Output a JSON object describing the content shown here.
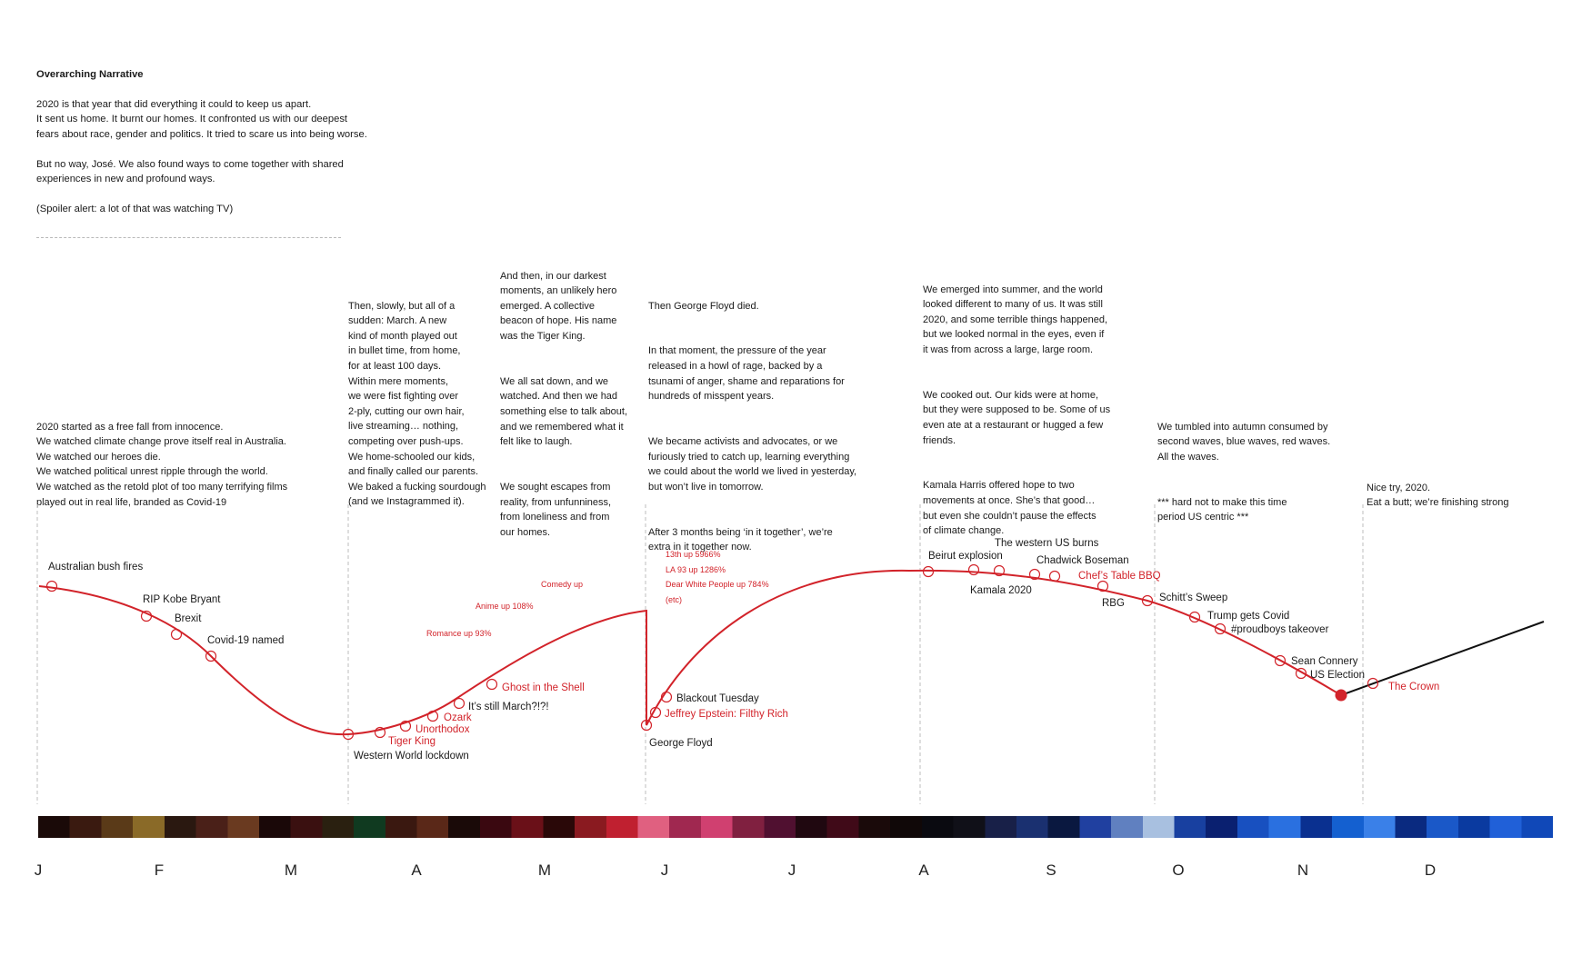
{
  "colors": {
    "curve": "#d2232a",
    "future": "#111111",
    "text": "#1a1a1a",
    "dashed": "#bdbdbd"
  },
  "intro": {
    "heading": "Overarching Narrative",
    "paragraphs": [
      "2020 is that year that did everything it could to keep us apart.\nIt sent us home. It burnt our homes. It confronted us with our deepest\nfears about race, gender and politics. It tried to scare us into being worse.",
      "But no way, José. We also found ways to come together with shared\nexperiences in new and profound ways.",
      "(Spoiler alert: a lot of that was watching TV)"
    ]
  },
  "narratives": [
    {
      "id": "jan",
      "paragraphs": [
        "2020 started as a free fall from innocence.\nWe watched climate change prove itself real in Australia.\nWe watched our heroes die.\nWe watched political unrest ripple through the world.\nWe watched as the retold plot of too many terrifying films\nplayed out in real life, branded as Covid-19"
      ]
    },
    {
      "id": "mar",
      "paragraphs": [
        "Then, slowly, but all of a\nsudden: March. A new\nkind of month played out\nin bullet time, from home,\nfor at least 100 days.\nWithin mere moments,\nwe were fist fighting over\n2-ply, cutting our own hair,\nlive streaming… nothing,\ncompeting over push-ups.\nWe home-schooled our kids,\nand finally called our parents.\nWe baked a fucking sourdough\n(and we Instagrammed it)."
      ]
    },
    {
      "id": "apr",
      "paragraphs": [
        "And then, in our darkest\nmoments, an unlikely hero\nemerged. A collective\nbeacon of hope. His name\nwas the Tiger King.",
        "We all sat down, and we\nwatched. And then we had\nsomething else to talk about,\nand we remembered what it\nfelt like to laugh.",
        "We sought escapes from\nreality, from unfunniness,\nfrom loneliness and from\nour homes."
      ]
    },
    {
      "id": "jun",
      "paragraphs": [
        "Then George Floyd died.",
        "In that moment, the pressure of the year\nreleased in a howl of rage, backed by a\ntsunami of anger, shame and reparations for\nhundreds of misspent years.",
        "We became activists and advocates, or we\nfuriously tried to catch up, learning everything\nwe could about the world we lived in yesterday,\nbut won’t live in tomorrow.",
        "After 3 months being ‘in it together’, we’re\nextra in it together now."
      ]
    },
    {
      "id": "aug",
      "paragraphs": [
        "We emerged into summer, and the world\nlooked different to many of us. It was still\n2020, and some terrible things happened,\nbut we looked normal in the eyes, even if\nit was from across a large, large room.",
        "We cooked out. Our kids were at home,\nbut they were supposed to be. Some of us\neven ate at a restaurant or hugged a few\nfriends.",
        "Kamala Harris offered hope to two\nmovements at once. She’s that good…\nbut even she couldn’t pause the effects\nof climate change."
      ]
    },
    {
      "id": "oct",
      "paragraphs": [
        "We tumbled into autumn consumed by\nsecond waves, blue waves, red waves.\nAll the waves.",
        "*** hard not to make this time\nperiod US centric ***"
      ]
    },
    {
      "id": "dec",
      "paragraphs": [
        "Nice try, 2020.\nEat a butt; we’re finishing strong"
      ]
    }
  ],
  "events": [
    {
      "label": "Australian bush fires",
      "kind": "news"
    },
    {
      "label": "RIP Kobe Bryant",
      "kind": "news"
    },
    {
      "label": "Brexit",
      "kind": "news"
    },
    {
      "label": "Covid-19 named",
      "kind": "news"
    },
    {
      "label": "Western World lockdown",
      "kind": "news"
    },
    {
      "label": "Tiger King",
      "kind": "show"
    },
    {
      "label": "Unorthodox",
      "kind": "show"
    },
    {
      "label": "Ozark",
      "kind": "show"
    },
    {
      "label": "It’s still March?!?!",
      "kind": "news"
    },
    {
      "label": "Ghost in the Shell",
      "kind": "show"
    },
    {
      "label": "George Floyd",
      "kind": "news"
    },
    {
      "label": "Jeffrey Epstein: Filthy Rich",
      "kind": "show"
    },
    {
      "label": "Blackout Tuesday",
      "kind": "news"
    },
    {
      "label": "Beirut explosion",
      "kind": "news"
    },
    {
      "label": "Kamala 2020",
      "kind": "news"
    },
    {
      "label": "The western US burns",
      "kind": "news"
    },
    {
      "label": "Chadwick Boseman",
      "kind": "news"
    },
    {
      "label": "Chef’s Table BBQ",
      "kind": "show"
    },
    {
      "label": "RBG",
      "kind": "news"
    },
    {
      "label": "Schitt’s Sweep",
      "kind": "news"
    },
    {
      "label": "Trump gets Covid",
      "kind": "news"
    },
    {
      "label": "#proudboys takeover",
      "kind": "news"
    },
    {
      "label": "Sean Connery",
      "kind": "news"
    },
    {
      "label": "US Election",
      "kind": "news"
    },
    {
      "label": "The Crown",
      "kind": "show"
    }
  ],
  "genre_notes": [
    "Romance up 93%",
    "Anime up 108%",
    "Comedy up"
  ],
  "stats_block": [
    "13th up 5966%",
    "LA 93 up 1286%",
    "Dear White People up 784%",
    "(etc)"
  ],
  "months": [
    "J",
    "F",
    "M",
    "A",
    "M",
    "J",
    "J",
    "A",
    "S",
    "O",
    "N",
    "D"
  ],
  "color_strip_stops": [
    "#1a0a08",
    "#3a1a10",
    "#5a3a18",
    "#8a6a28",
    "#2a1810",
    "#4a2018",
    "#6a3a20",
    "#1a0808",
    "#3a1010",
    "#2a2010",
    "#103a20",
    "#3a1810",
    "#5a2818",
    "#1a0a08",
    "#3a0810",
    "#6a1018",
    "#2a0808",
    "#8a1a20",
    "#c02030",
    "#e06080",
    "#a02850",
    "#d04070",
    "#802040",
    "#501030",
    "#200810",
    "#400a18",
    "#1a0a0a",
    "#100808",
    "#0a0a10",
    "#101018",
    "#182048",
    "#1a3070",
    "#0a1840",
    "#2040a0",
    "#6080c0",
    "#a8c0e0",
    "#1840a0",
    "#0a2070",
    "#1850c0",
    "#2a70e0",
    "#0a3090",
    "#1460d0",
    "#3a80e8",
    "#0a2a80",
    "#1a58c8",
    "#0a3aa0",
    "#2060d8",
    "#1048b8"
  ]
}
